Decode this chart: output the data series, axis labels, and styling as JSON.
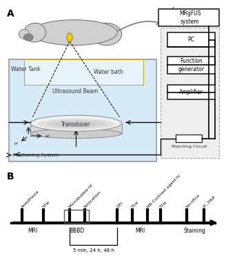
{
  "fig_width": 3.28,
  "fig_height": 4.0,
  "dpi": 100,
  "bg_color": "#ffffff",
  "panel_A_label": "A",
  "panel_B_label": "B",
  "timeline_labels_top": [
    "Anesthesia",
    "T2w",
    "Microbubble IV",
    "Sonication",
    "DTI",
    "T1w",
    "MR Contrast agent IV",
    "T1w",
    "Sacrifice",
    "IF, H&E"
  ],
  "timeline_bottom_note": "5 min, 24 h, 48 h",
  "boxes_panel_A": [
    "MRgFUS\nsystem",
    "PC",
    "Function\ngenerator",
    "Amplifier"
  ],
  "water_bath_label": "Water bath",
  "water_tank_label": "Water Tank",
  "ultrasound_beam_label": "Ultrasound Beam",
  "transducer_label": "Transducer",
  "positioning_label": "Positioning System",
  "matching_label": "Matching Circuit",
  "tank_color": "#d6eaf8",
  "tank_edge_color": "#999999",
  "bath_color": "#e8f4fb",
  "bath_edge_color": "#c8a820",
  "rat_body_color": "#d0d0d0",
  "rat_edge_color": "#777777",
  "yellow_color": "#f0d000",
  "gray_dot_color": "#888888",
  "transducer_face": "#e8e8e8",
  "transducer_top": "#f8f8f8",
  "box_edge": "#222222",
  "outer_box_edge": "#aaaaaa",
  "outer_box_face": "#eeeeee"
}
